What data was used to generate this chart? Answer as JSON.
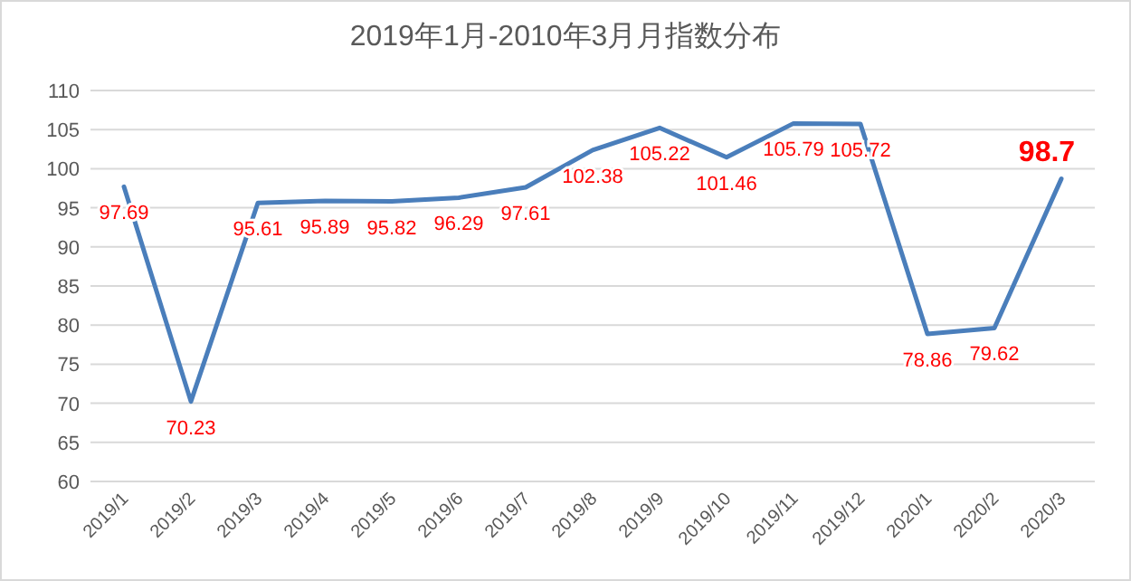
{
  "chart_data": {
    "type": "line",
    "title": "2019年1月-2010年3月月指数分布",
    "categories": [
      "2019/1",
      "2019/2",
      "2019/3",
      "2019/4",
      "2019/5",
      "2019/6",
      "2019/7",
      "2019/8",
      "2019/9",
      "2019/10",
      "2019/11",
      "2019/12",
      "2020/1",
      "2020/2",
      "2020/3"
    ],
    "series": [
      {
        "color": "#4a7ebb",
        "values": [
          97.69,
          70.23,
          95.61,
          95.89,
          95.82,
          96.29,
          97.61,
          102.38,
          105.22,
          101.46,
          105.79,
          105.72,
          78.86,
          79.62,
          98.7
        ]
      }
    ],
    "ylim": [
      60,
      110
    ],
    "yticks": [
      60,
      65,
      70,
      75,
      80,
      85,
      90,
      95,
      100,
      105,
      110
    ],
    "grid": "y",
    "data_labels": true,
    "marker": "none",
    "line_style": "solid"
  }
}
